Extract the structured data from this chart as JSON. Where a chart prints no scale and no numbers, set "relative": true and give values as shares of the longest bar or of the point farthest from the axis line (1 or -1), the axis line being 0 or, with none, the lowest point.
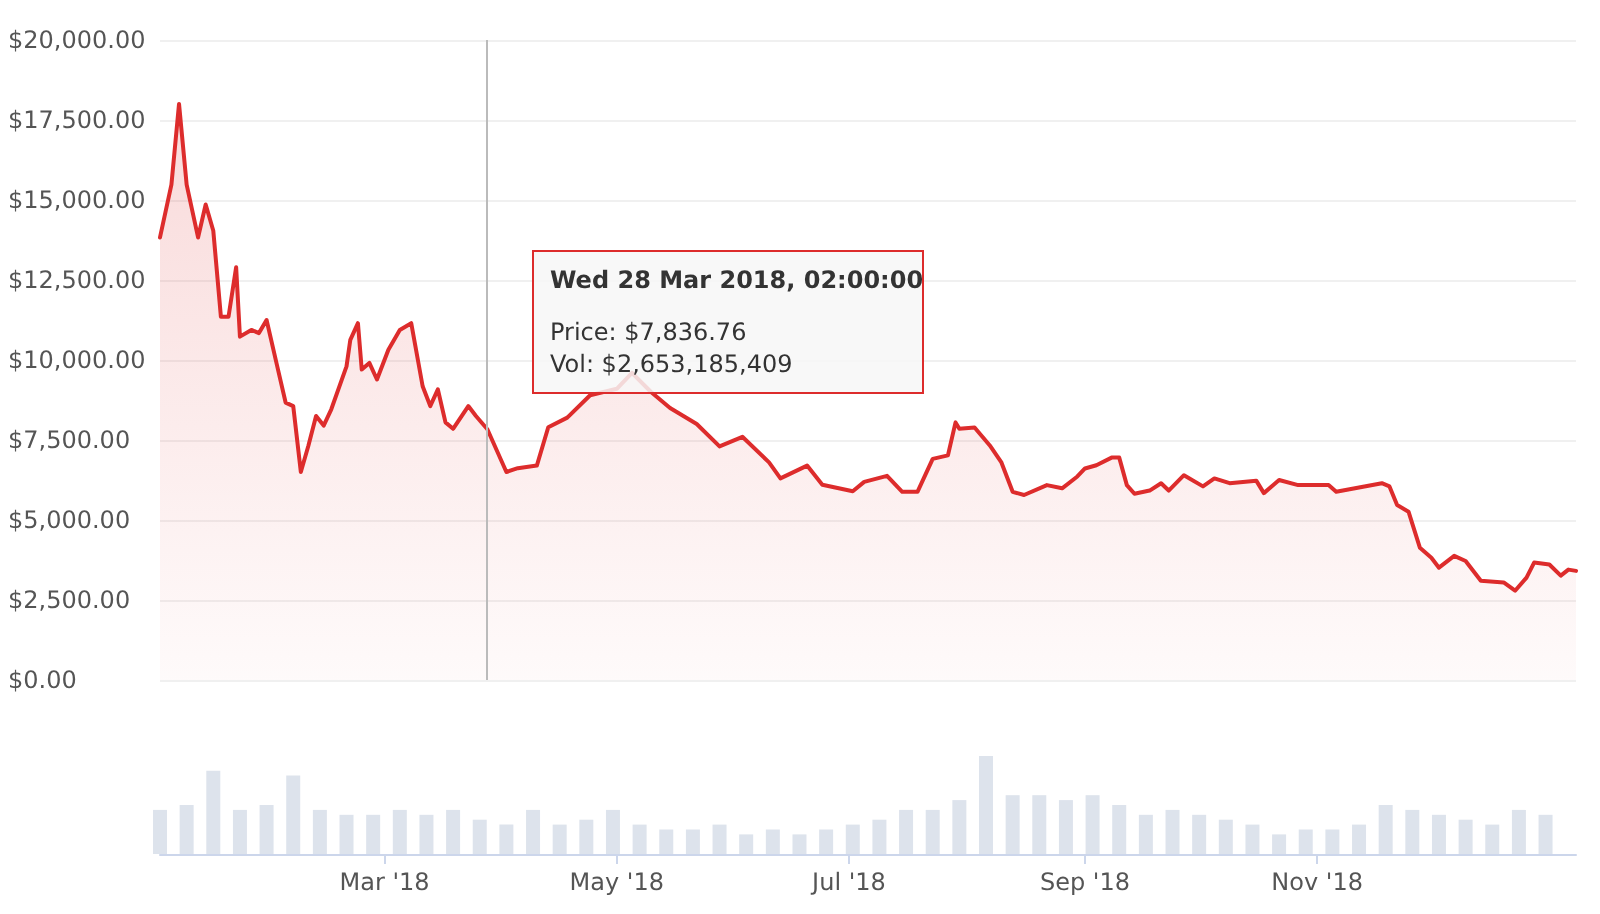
{
  "chart_data": [
    {
      "type": "area",
      "xlim": [
        "2018-01-01",
        "2019-01-08"
      ],
      "ylim": [
        0,
        20000
      ],
      "yticks": [
        {
          "value": 0,
          "label": "$0.00"
        },
        {
          "value": 2500,
          "label": "$2,500.00"
        },
        {
          "value": 5000,
          "label": "$5,000.00"
        },
        {
          "value": 7500,
          "label": "$7,500.00"
        },
        {
          "value": 10000,
          "label": "$10,000.00"
        },
        {
          "value": 12500,
          "label": "$12,500.00"
        },
        {
          "value": 15000,
          "label": "$15,000.00"
        },
        {
          "value": 17500,
          "label": "$17,500.00"
        },
        {
          "value": 20000,
          "label": "$20,000.00"
        }
      ],
      "tick_labels": "y",
      "grid": "y",
      "marker": "none",
      "line_style": "solid",
      "series": [
        {
          "color": "#dd2c2c",
          "x": [
            "2018-01-01",
            "2018-01-04",
            "2018-01-06",
            "2018-01-08",
            "2018-01-11",
            "2018-01-13",
            "2018-01-15",
            "2018-01-17",
            "2018-01-19",
            "2018-01-21",
            "2018-01-22",
            "2018-01-25",
            "2018-01-27",
            "2018-01-29",
            "2018-02-01",
            "2018-02-03",
            "2018-02-05",
            "2018-02-07",
            "2018-02-09",
            "2018-02-11",
            "2018-02-13",
            "2018-02-15",
            "2018-02-19",
            "2018-02-20",
            "2018-02-22",
            "2018-02-23",
            "2018-02-25",
            "2018-02-27",
            "2018-03-02",
            "2018-03-05",
            "2018-03-08",
            "2018-03-11",
            "2018-03-13",
            "2018-03-15",
            "2018-03-17",
            "2018-03-19",
            "2018-03-23",
            "2018-03-25",
            "2018-03-28",
            "2018-04-02",
            "2018-04-05",
            "2018-04-10",
            "2018-04-13",
            "2018-04-18",
            "2018-04-24",
            "2018-05-01",
            "2018-05-05",
            "2018-05-10",
            "2018-05-15",
            "2018-05-22",
            "2018-05-28",
            "2018-06-03",
            "2018-06-10",
            "2018-06-13",
            "2018-06-20",
            "2018-06-24",
            "2018-07-02",
            "2018-07-05",
            "2018-07-11",
            "2018-07-15",
            "2018-07-19",
            "2018-07-23",
            "2018-07-27",
            "2018-07-29",
            "2018-07-30",
            "2018-08-03",
            "2018-08-07",
            "2018-08-10",
            "2018-08-13",
            "2018-08-16",
            "2018-08-22",
            "2018-08-26",
            "2018-08-30",
            "2018-09-01",
            "2018-09-04",
            "2018-09-08",
            "2018-09-10",
            "2018-09-12",
            "2018-09-14",
            "2018-09-18",
            "2018-09-21",
            "2018-09-23",
            "2018-09-27",
            "2018-10-02",
            "2018-10-05",
            "2018-10-09",
            "2018-10-16",
            "2018-10-18",
            "2018-10-22",
            "2018-10-27",
            "2018-11-04",
            "2018-11-06",
            "2018-11-18",
            "2018-11-20",
            "2018-11-22",
            "2018-11-25",
            "2018-11-28",
            "2018-12-01",
            "2018-12-03",
            "2018-12-07",
            "2018-12-10",
            "2018-12-14",
            "2018-12-20",
            "2018-12-23",
            "2018-12-26",
            "2018-12-28",
            "2019-01-01",
            "2019-01-04",
            "2019-01-06",
            "2019-01-08"
          ],
          "values": [
            13830,
            15480,
            18000,
            15480,
            13830,
            14860,
            14040,
            11350,
            11350,
            12900,
            10730,
            10940,
            10840,
            11250,
            9700,
            8670,
            8560,
            6500,
            7330,
            8250,
            7950,
            8460,
            9800,
            10630,
            11150,
            9700,
            9910,
            9390,
            10320,
            10940,
            11150,
            9180,
            8560,
            9080,
            8050,
            7850,
            8560,
            8250,
            7836.76,
            6500,
            6620,
            6700,
            7900,
            8200,
            8900,
            9100,
            9600,
            9000,
            8500,
            8000,
            7300,
            7600,
            6800,
            6300,
            6700,
            6100,
            5900,
            6190,
            6380,
            5880,
            5880,
            6910,
            7020,
            8050,
            7850,
            7890,
            7330,
            6810,
            5880,
            5780,
            6090,
            5990,
            6360,
            6610,
            6710,
            6950,
            6950,
            6090,
            5820,
            5920,
            6150,
            5920,
            6400,
            6050,
            6300,
            6150,
            6230,
            5840,
            6250,
            6090,
            6090,
            5880,
            6150,
            6050,
            5470,
            5260,
            4130,
            3820,
            3510,
            3880,
            3720,
            3100,
            3050,
            2790,
            3200,
            3670,
            3610,
            3260,
            3450,
            3410
          ]
        }
      ],
      "ref_lines": [
        {
          "axis": "x",
          "value": "2018-03-28",
          "color": "#bbbbbb"
        }
      ],
      "annotations": [
        "Wed 28 Mar 2018, 02:00:00\nPrice: $7,836.76\nVol: $2,653,185,409"
      ]
    },
    {
      "type": "bar",
      "relative": true,
      "xlim": [
        "2018-01-01",
        "2019-01-08"
      ],
      "xticks": [
        {
          "value": "2018-03-01",
          "label": "Mar '18"
        },
        {
          "value": "2018-05-01",
          "label": "May '18"
        },
        {
          "value": "2018-07-01",
          "label": "Jul '18"
        },
        {
          "value": "2018-09-01",
          "label": "Sep '18"
        },
        {
          "value": "2018-11-01",
          "label": "Nov '18"
        }
      ],
      "tick_labels": "x",
      "series": [
        {
          "color": "#dde3ec",
          "x": [
            "2018-01-01",
            "2018-01-08",
            "2018-01-15",
            "2018-01-22",
            "2018-01-29",
            "2018-02-05",
            "2018-02-12",
            "2018-02-19",
            "2018-02-26",
            "2018-03-05",
            "2018-03-12",
            "2018-03-19",
            "2018-03-26",
            "2018-04-02",
            "2018-04-09",
            "2018-04-16",
            "2018-04-23",
            "2018-04-30",
            "2018-05-07",
            "2018-05-14",
            "2018-05-21",
            "2018-05-28",
            "2018-06-04",
            "2018-06-11",
            "2018-06-18",
            "2018-06-25",
            "2018-07-02",
            "2018-07-09",
            "2018-07-16",
            "2018-07-23",
            "2018-07-30",
            "2018-08-06",
            "2018-08-13",
            "2018-08-20",
            "2018-08-27",
            "2018-09-03",
            "2018-09-10",
            "2018-09-17",
            "2018-09-24",
            "2018-10-01",
            "2018-10-08",
            "2018-10-15",
            "2018-10-22",
            "2018-10-29",
            "2018-11-05",
            "2018-11-12",
            "2018-11-19",
            "2018-11-26",
            "2018-12-03",
            "2018-12-10",
            "2018-12-17",
            "2018-12-24",
            "2018-12-31"
          ],
          "values": [
            0.45,
            0.5,
            0.85,
            0.45,
            0.5,
            0.8,
            0.45,
            0.4,
            0.4,
            0.45,
            0.4,
            0.45,
            0.35,
            0.3,
            0.45,
            0.3,
            0.35,
            0.45,
            0.3,
            0.25,
            0.25,
            0.3,
            0.2,
            0.25,
            0.2,
            0.25,
            0.3,
            0.35,
            0.45,
            0.45,
            0.55,
            1.0,
            0.6,
            0.6,
            0.55,
            0.6,
            0.5,
            0.4,
            0.45,
            0.4,
            0.35,
            0.3,
            0.2,
            0.25,
            0.25,
            0.3,
            0.5,
            0.45,
            0.4,
            0.35,
            0.3,
            0.45,
            0.4
          ]
        }
      ]
    }
  ]
}
